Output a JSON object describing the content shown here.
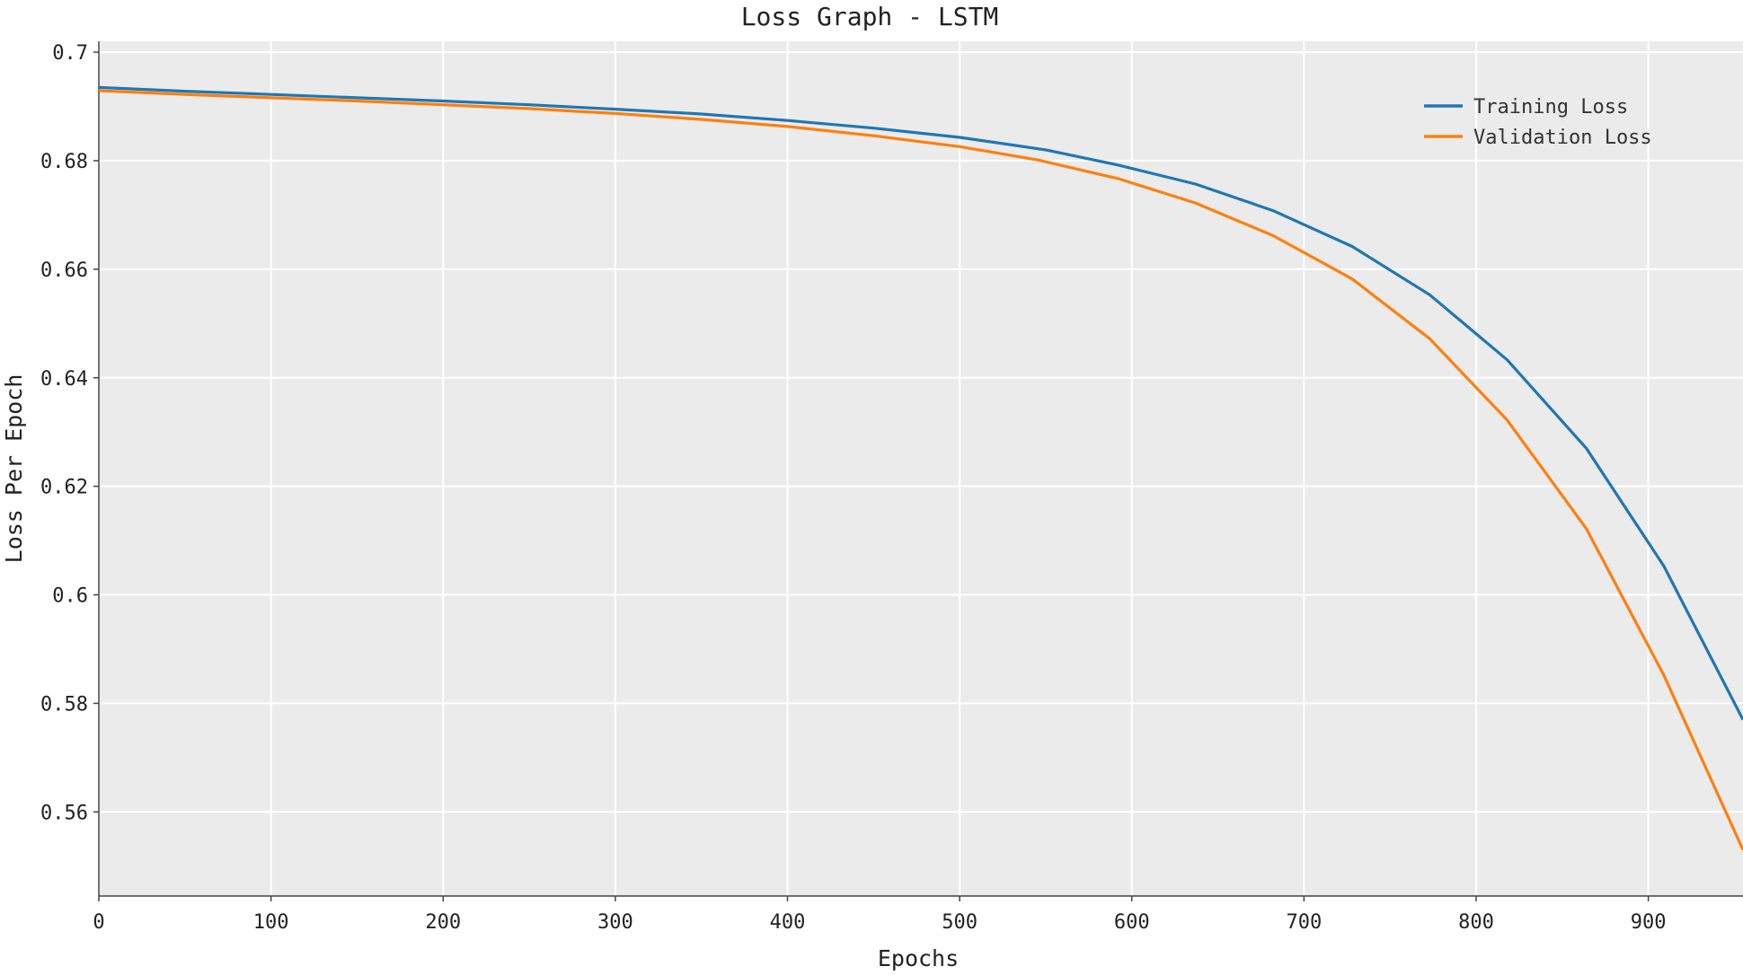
{
  "chart_data": {
    "type": "line",
    "title": "Loss Graph - LSTM",
    "xlabel": "Epochs",
    "ylabel": "Loss Per Epoch",
    "xlim": [
      0,
      955
    ],
    "ylim": [
      0.5445,
      0.702
    ],
    "x_ticks": [
      0,
      100,
      200,
      300,
      400,
      500,
      600,
      700,
      800,
      900
    ],
    "x_tick_labels": [
      "0",
      "100",
      "200",
      "300",
      "400",
      "500",
      "600",
      "700",
      "800",
      "900"
    ],
    "y_ticks": [
      0.7,
      0.68,
      0.66,
      0.64,
      0.62,
      0.6,
      0.58,
      0.56
    ],
    "y_tick_labels": [
      "0.7",
      "0.68",
      "0.66",
      "0.64",
      "0.62",
      "0.6",
      "0.58",
      "0.56"
    ],
    "grid": true,
    "legend_position": "top-right",
    "series": [
      {
        "name": "Training Loss",
        "color": "#1f77b4",
        "x": [
          0,
          50,
          100,
          150,
          200,
          250,
          300,
          350,
          400,
          450,
          500,
          550,
          592,
          637,
          682,
          728,
          773,
          818,
          864,
          909,
          955
        ],
        "y": [
          0.6935,
          0.6928,
          0.6922,
          0.6916,
          0.691,
          0.6903,
          0.6895,
          0.6886,
          0.6874,
          0.686,
          0.6843,
          0.682,
          0.6792,
          0.6757,
          0.6708,
          0.6642,
          0.6553,
          0.6433,
          0.627,
          0.6053,
          0.577
        ]
      },
      {
        "name": "Validation Loss",
        "color": "#ff7f0e",
        "x": [
          0,
          50,
          100,
          150,
          200,
          250,
          300,
          350,
          400,
          450,
          500,
          546,
          592,
          637,
          682,
          728,
          773,
          818,
          864,
          909,
          955
        ],
        "y": [
          0.6929,
          0.6922,
          0.6916,
          0.691,
          0.6903,
          0.6896,
          0.6887,
          0.6876,
          0.6863,
          0.6846,
          0.6826,
          0.6801,
          0.6767,
          0.6722,
          0.6662,
          0.6582,
          0.6472,
          0.6322,
          0.6122,
          0.5852,
          0.553
        ]
      }
    ]
  }
}
